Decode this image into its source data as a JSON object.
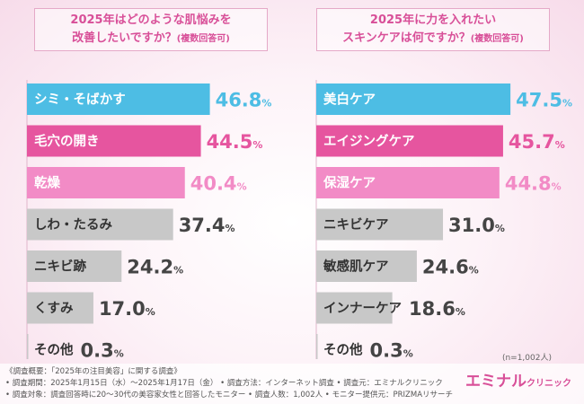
{
  "chart_data": [
    {
      "type": "bar",
      "title_line1": "2025年はどのような肌悩みを",
      "title_line2": "改善したいですか？",
      "title_suffix": "(複数回答可)",
      "categories": [
        "シミ・そばかす",
        "毛穴の開き",
        "乾燥",
        "しわ・たるみ",
        "ニキビ跡",
        "くすみ",
        "その他"
      ],
      "values": [
        46.8,
        44.5,
        40.4,
        37.4,
        24.2,
        17.0,
        0.3
      ],
      "value_labels_big": [
        "46.8",
        "44.5",
        "40.4",
        "37.4",
        "24.2",
        "17.0",
        "0.3"
      ],
      "unit": "%",
      "colors": [
        "#4dbde4",
        "#e6559f",
        "#f28bc6",
        "#c8c8c8",
        "#c8c8c8",
        "#c8c8c8",
        "#c8c8c8"
      ],
      "label_colors": [
        "#ffffff",
        "#ffffff",
        "#ffffff",
        "#333333",
        "#333333",
        "#333333",
        "#333333"
      ],
      "value_colors": [
        "#4dbde4",
        "#e6559f",
        "#f28bc6",
        "#444444",
        "#444444",
        "#444444",
        "#444444"
      ]
    },
    {
      "type": "bar",
      "title_line1": "2025年に力を入れたい",
      "title_line2": "スキンケアは何ですか？",
      "title_suffix": "(複数回答可)",
      "categories": [
        "美白ケア",
        "エイジングケア",
        "保湿ケア",
        "ニキビケア",
        "敏感肌ケア",
        "インナーケア",
        "その他"
      ],
      "values": [
        47.5,
        45.7,
        44.8,
        31.0,
        24.6,
        18.6,
        0.3
      ],
      "value_labels_big": [
        "47.5",
        "45.7",
        "44.8",
        "31.0",
        "24.6",
        "18.6",
        "0.3"
      ],
      "unit": "%",
      "colors": [
        "#4dbde4",
        "#e6559f",
        "#f28bc6",
        "#c8c8c8",
        "#c8c8c8",
        "#c8c8c8",
        "#c8c8c8"
      ],
      "label_colors": [
        "#ffffff",
        "#ffffff",
        "#ffffff",
        "#333333",
        "#333333",
        "#333333",
        "#333333"
      ],
      "value_colors": [
        "#4dbde4",
        "#e6559f",
        "#f28bc6",
        "#444444",
        "#444444",
        "#444444",
        "#444444"
      ]
    }
  ],
  "note": "(n=1,002人)",
  "footer": {
    "line1": "《調査概要：「2025年の注目美容」に関する調査》",
    "line2": "• 調査期間：2025年1月15日（水）～2025年1月17日（金） • 調査方法：インターネット調査 • 調査元：エミナルクリニック",
    "line3": "• 調査対象：調査回答時に20～30代の美容家女性と回答したモニター • 調査人数：1,002人 • モニター提供元：PRIZMAリサーチ"
  },
  "logo": {
    "main": "エミナル",
    "small": "クリニック"
  }
}
